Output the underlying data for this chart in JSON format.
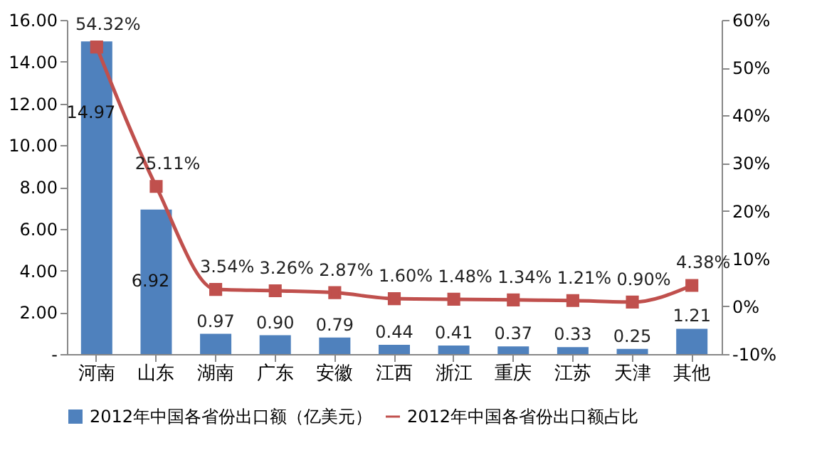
{
  "chart_data": {
    "type": "bar",
    "categories": [
      "河南",
      "山东",
      "湖南",
      "广东",
      "安徽",
      "江西",
      "浙江",
      "重庆",
      "江苏",
      "天津",
      "其他"
    ],
    "series": [
      {
        "name": "2012年中国各省份出口额（亿美元）",
        "color": "#4f81bd",
        "values": [
          14.97,
          6.92,
          0.97,
          0.9,
          0.79,
          0.44,
          0.41,
          0.37,
          0.33,
          0.25,
          1.21
        ],
        "value_labels": [
          "14.97",
          "6.92",
          "0.97",
          "0.90",
          "0.79",
          "0.44",
          "0.41",
          "0.37",
          "0.33",
          "0.25",
          "1.21"
        ]
      },
      {
        "name": "2012年中国各省份出口额占比",
        "type": "line",
        "axis": "y2",
        "color": "#c0504d",
        "marker": "square",
        "values": [
          54.32,
          25.11,
          3.54,
          3.26,
          2.87,
          1.6,
          1.48,
          1.34,
          1.21,
          0.9,
          4.38
        ],
        "value_labels": [
          "54.32%",
          "25.11%",
          "3.54%",
          "3.26%",
          "2.87%",
          "1.60%",
          "1.48%",
          "1.34%",
          "1.21%",
          "0.90%",
          "4.38%"
        ]
      }
    ],
    "ylim": [
      0,
      16
    ],
    "yticks": [
      {
        "value": 0,
        "label": "-"
      },
      {
        "value": 2,
        "label": "2.00"
      },
      {
        "value": 4,
        "label": "4.00"
      },
      {
        "value": 6,
        "label": "6.00"
      },
      {
        "value": 8,
        "label": "8.00"
      },
      {
        "value": 10,
        "label": "10.00"
      },
      {
        "value": 12,
        "label": "12.00"
      },
      {
        "value": 14,
        "label": "14.00"
      },
      {
        "value": 16,
        "label": "16.00"
      }
    ],
    "y2lim": [
      -10,
      60
    ],
    "y2ticks": [
      {
        "value": -10,
        "label": "-10%"
      },
      {
        "value": 0,
        "label": "0%"
      },
      {
        "value": 10,
        "label": "10%"
      },
      {
        "value": 20,
        "label": "20%"
      },
      {
        "value": 30,
        "label": "30%"
      },
      {
        "value": 40,
        "label": "40%"
      },
      {
        "value": 50,
        "label": "50%"
      },
      {
        "value": 60,
        "label": "60%"
      }
    ],
    "legend": "bottom",
    "grid": false
  }
}
